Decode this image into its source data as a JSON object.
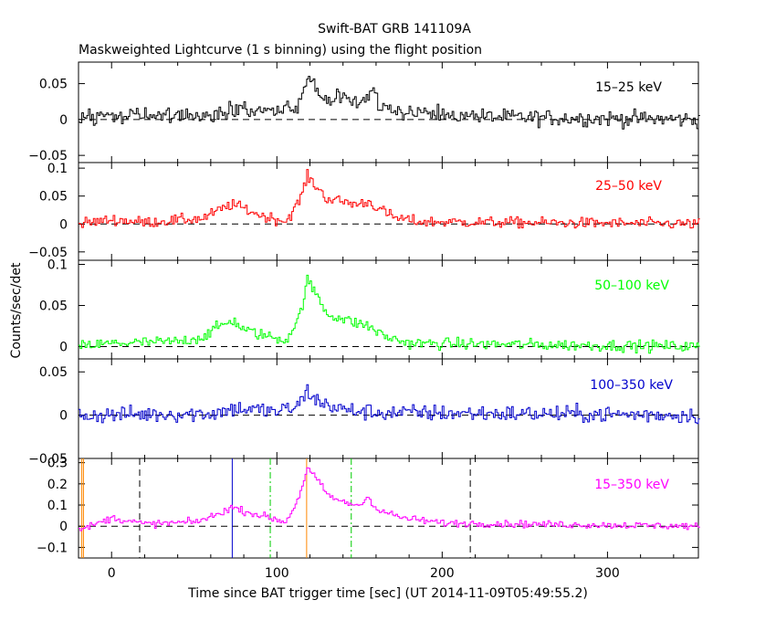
{
  "header": {
    "title": "Swift-BAT GRB 141109A",
    "subtitle": "Maskweighted Lightcurve (1 s binning) using the flight position"
  },
  "axes": {
    "xlabel": "Time since BAT trigger time [sec] (UT 2014-11-09T05:49:55.2)",
    "ylabel": "Counts/sec/det",
    "xlim": [
      -20,
      355
    ],
    "x_ticks": [
      0,
      100,
      200,
      300
    ],
    "x_tick_labels": [
      "0",
      "100",
      "200",
      "300"
    ]
  },
  "chart_data": [
    {
      "type": "line",
      "band": "15-25 keV",
      "label": "15–25 keV",
      "color": "#000000",
      "ylim": [
        -0.06,
        0.08
      ],
      "y_ticks": [
        -0.05,
        0,
        0.05
      ],
      "y_tick_labels": [
        "−0.05",
        "0",
        "0.05"
      ],
      "profile": {
        "baseline_noise": 0.008,
        "knots": [
          [
            -20,
            0.0
          ],
          [
            0,
            0.01
          ],
          [
            20,
            0.004
          ],
          [
            60,
            0.006
          ],
          [
            70,
            0.012
          ],
          [
            80,
            0.016
          ],
          [
            95,
            0.01
          ],
          [
            105,
            0.012
          ],
          [
            113,
            0.02
          ],
          [
            118,
            0.055
          ],
          [
            121,
            0.05
          ],
          [
            125,
            0.04
          ],
          [
            130,
            0.025
          ],
          [
            140,
            0.032
          ],
          [
            148,
            0.024
          ],
          [
            155,
            0.03
          ],
          [
            158,
            0.045
          ],
          [
            162,
            0.02
          ],
          [
            175,
            0.012
          ],
          [
            200,
            0.006
          ],
          [
            240,
            0.003
          ],
          [
            355,
            0.0
          ]
        ]
      }
    },
    {
      "type": "line",
      "band": "25-50 keV",
      "label": "25–50 keV",
      "color": "#ff0000",
      "ylim": [
        -0.065,
        0.11
      ],
      "y_ticks": [
        -0.05,
        0,
        0.05,
        0.1
      ],
      "y_tick_labels": [
        "−0.05",
        "0",
        "0.05",
        "0.1"
      ],
      "profile": {
        "baseline_noise": 0.007,
        "knots": [
          [
            -20,
            0.0
          ],
          [
            0,
            0.008
          ],
          [
            20,
            0.003
          ],
          [
            55,
            0.01
          ],
          [
            65,
            0.025
          ],
          [
            72,
            0.035
          ],
          [
            78,
            0.03
          ],
          [
            90,
            0.015
          ],
          [
            105,
            0.005
          ],
          [
            113,
            0.04
          ],
          [
            118,
            0.085
          ],
          [
            122,
            0.072
          ],
          [
            130,
            0.045
          ],
          [
            140,
            0.04
          ],
          [
            148,
            0.035
          ],
          [
            155,
            0.04
          ],
          [
            160,
            0.03
          ],
          [
            170,
            0.012
          ],
          [
            185,
            0.004
          ],
          [
            355,
            0.0
          ]
        ]
      }
    },
    {
      "type": "line",
      "band": "50-100 keV",
      "label": "50–100 keV",
      "color": "#00ff00",
      "ylim": [
        -0.015,
        0.105
      ],
      "y_ticks": [
        0,
        0.05,
        0.1
      ],
      "y_tick_labels": [
        "0",
        "0.05",
        "0.1"
      ],
      "profile": {
        "baseline_noise": 0.005,
        "knots": [
          [
            -20,
            0.0
          ],
          [
            0,
            0.004
          ],
          [
            40,
            0.006
          ],
          [
            55,
            0.012
          ],
          [
            65,
            0.025
          ],
          [
            73,
            0.032
          ],
          [
            80,
            0.02
          ],
          [
            95,
            0.012
          ],
          [
            105,
            0.008
          ],
          [
            113,
            0.035
          ],
          [
            118,
            0.08
          ],
          [
            123,
            0.065
          ],
          [
            130,
            0.04
          ],
          [
            145,
            0.03
          ],
          [
            155,
            0.025
          ],
          [
            165,
            0.012
          ],
          [
            180,
            0.004
          ],
          [
            355,
            0.0
          ]
        ]
      }
    },
    {
      "type": "line",
      "band": "100-350 keV",
      "label": "100–350 keV",
      "color": "#0000cc",
      "ylim": [
        -0.05,
        0.065
      ],
      "y_ticks": [
        -0.05,
        0,
        0.05
      ],
      "y_tick_labels": [
        "−0.05",
        "0",
        "0.05"
      ],
      "profile": {
        "baseline_noise": 0.007,
        "knots": [
          [
            -20,
            0.0
          ],
          [
            60,
            0.002
          ],
          [
            75,
            0.008
          ],
          [
            100,
            0.004
          ],
          [
            112,
            0.01
          ],
          [
            118,
            0.028
          ],
          [
            125,
            0.015
          ],
          [
            140,
            0.006
          ],
          [
            160,
            0.003
          ],
          [
            355,
            0.0
          ]
        ]
      }
    },
    {
      "type": "line",
      "band": "15-350 keV",
      "label": "15–350 keV",
      "color": "#ff00ff",
      "ylim": [
        -0.15,
        0.32
      ],
      "y_ticks": [
        -0.1,
        0,
        0.1,
        0.2,
        0.3
      ],
      "y_tick_labels": [
        "−0.1",
        "0",
        "0.1",
        "0.2",
        "0.3"
      ],
      "profile": {
        "baseline_noise": 0.012,
        "knots": [
          [
            -20,
            -0.02
          ],
          [
            -10,
            0.01
          ],
          [
            0,
            0.04
          ],
          [
            20,
            0.01
          ],
          [
            50,
            0.02
          ],
          [
            62,
            0.05
          ],
          [
            72,
            0.09
          ],
          [
            78,
            0.075
          ],
          [
            95,
            0.04
          ],
          [
            105,
            0.02
          ],
          [
            112,
            0.12
          ],
          [
            118,
            0.27
          ],
          [
            122,
            0.24
          ],
          [
            130,
            0.15
          ],
          [
            140,
            0.11
          ],
          [
            150,
            0.1
          ],
          [
            155,
            0.14
          ],
          [
            160,
            0.08
          ],
          [
            175,
            0.04
          ],
          [
            200,
            0.015
          ],
          [
            355,
            0.0
          ]
        ]
      },
      "markers": [
        {
          "x": -18,
          "style": "solid",
          "color": "#ff8800"
        },
        {
          "x": -17,
          "style": "solid",
          "color": "#ff8800"
        },
        {
          "x": 17,
          "style": "dashed",
          "color": "#000000"
        },
        {
          "x": 73,
          "style": "solid",
          "color": "#0000cc"
        },
        {
          "x": 96,
          "style": "dashdot",
          "color": "#00cc00"
        },
        {
          "x": 118,
          "style": "solid",
          "color": "#ff8800"
        },
        {
          "x": 145,
          "style": "dashdot",
          "color": "#00cc00"
        },
        {
          "x": 217,
          "style": "dashed",
          "color": "#000000"
        }
      ]
    }
  ]
}
